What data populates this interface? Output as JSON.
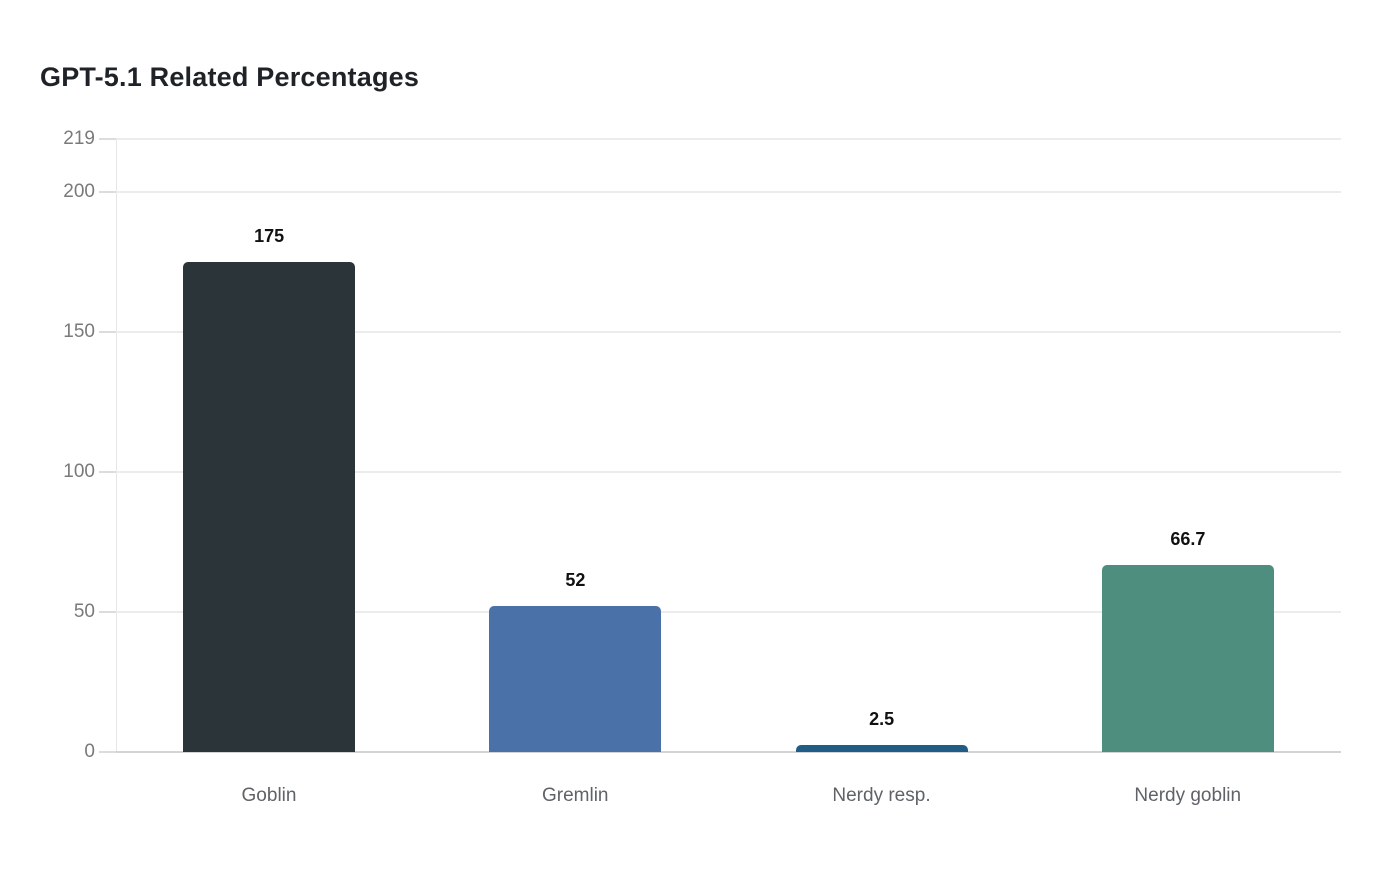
{
  "chart_data": {
    "type": "bar",
    "title": "GPT-5.1 Related Percentages",
    "categories": [
      "Goblin",
      "Gremlin",
      "Nerdy resp.",
      "Nerdy goblin"
    ],
    "values": [
      175,
      52,
      2.5,
      66.7
    ],
    "value_labels": [
      "175",
      "52",
      "2.5",
      "66.7"
    ],
    "bar_colors": [
      "#2b3438",
      "#4a72a8",
      "#1f5d87",
      "#4e8e7e"
    ],
    "yticks": [
      0,
      50,
      100,
      150,
      200,
      219
    ],
    "ytick_labels": [
      "0",
      "50",
      "100",
      "150",
      "200",
      "219"
    ],
    "ylim": [
      0,
      219
    ],
    "xlabel": "",
    "ylabel": "",
    "grid": true,
    "legend": false,
    "colors": {
      "background": "#ffffff",
      "title_text": "#1f2328",
      "gridline": "#ececec",
      "axis_line": "#d4d4d4",
      "tick_mark": "#dcdcdc",
      "ytick_text": "#7a7a7a",
      "category_text": "#5f6368",
      "value_label_text": "#111111"
    }
  }
}
